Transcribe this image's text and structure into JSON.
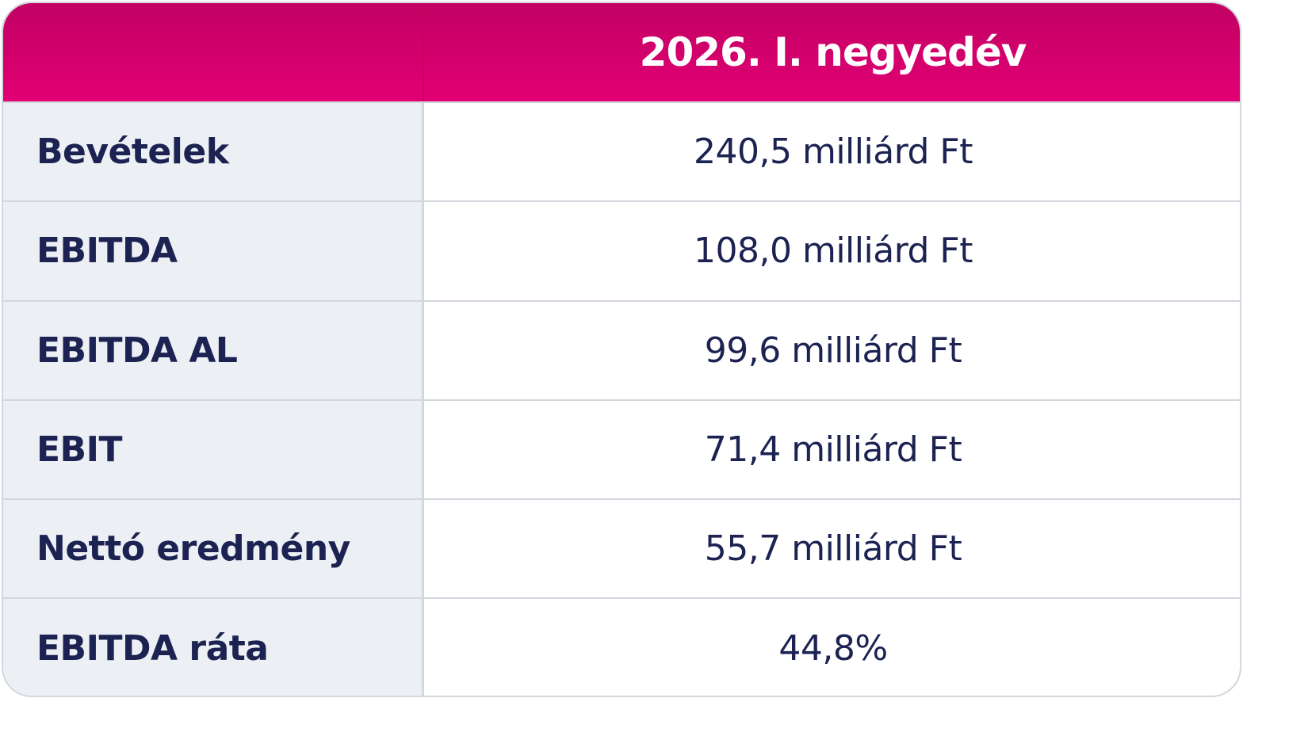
{
  "header": {
    "period_label": "2026. I. negyedév"
  },
  "rows": [
    {
      "label": "Bevételek",
      "value": "240,5 milliárd Ft"
    },
    {
      "label": "EBITDA",
      "value": "108,0 milliárd Ft"
    },
    {
      "label": "EBITDA AL",
      "value": "99,6 milliárd Ft"
    },
    {
      "label": "EBIT",
      "value": "71,4 milliárd Ft"
    },
    {
      "label": "Nettó eredmény",
      "value": "55,7 milliárd Ft"
    },
    {
      "label": "EBITDA ráta",
      "value": "44,8%"
    }
  ],
  "colors": {
    "header_bg": "#e20074",
    "header_bg_dark": "#c20163",
    "label_bg": "#eceff3",
    "text": "#1c2352",
    "border": "#d3d6dd"
  }
}
